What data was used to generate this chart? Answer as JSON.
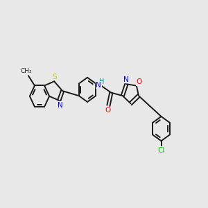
{
  "background_color": "#e8e8e8",
  "bond_color": "#1a1a1a",
  "bond_width": 1.4,
  "atom_colors": {
    "N": "#0000ff",
    "O": "#ff0000",
    "S": "#cccc00",
    "Cl": "#00cc00",
    "C": "#1a1a1a",
    "H": "#008b8b"
  },
  "font_size": 7.5,
  "fig_width": 3.0,
  "fig_height": 3.0,
  "xlim": [
    0,
    10
  ],
  "ylim": [
    1,
    9
  ]
}
